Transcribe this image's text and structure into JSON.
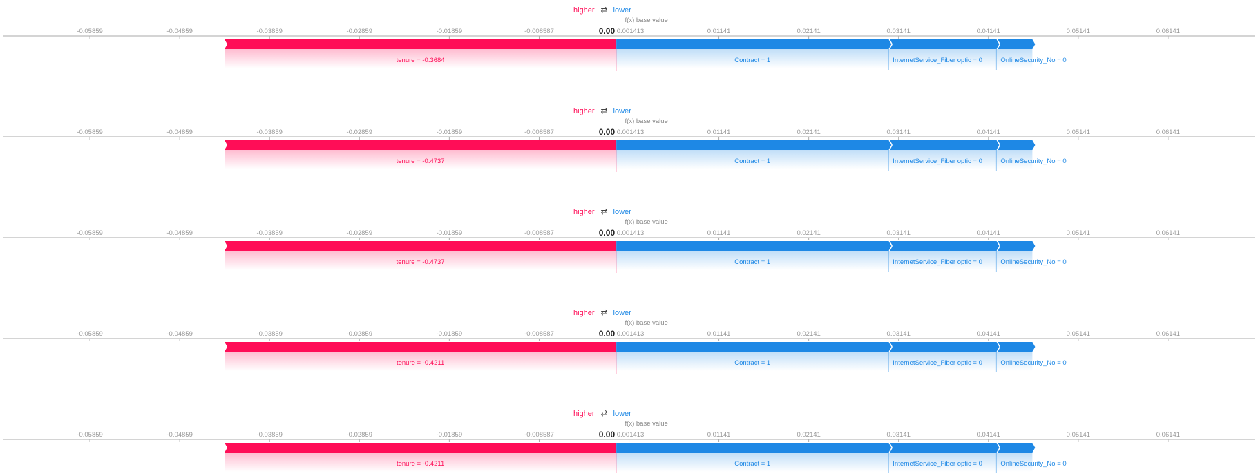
{
  "legend": {
    "higher": "higher",
    "lower": "lower",
    "arrow": "⇄"
  },
  "base_label": "f(x)  base value",
  "colors": {
    "positive": "#ff0d57",
    "negative": "#1e88e5",
    "axis": "#888888",
    "text": "#444444"
  },
  "chart_data": [
    {
      "type": "force",
      "fx": "0.00",
      "base_value": 0.001413,
      "xlim": [
        -0.06859,
        0.07141
      ],
      "ticks": [
        -0.05859,
        -0.04859,
        -0.03859,
        -0.02859,
        -0.01859,
        -0.008587,
        0.001413,
        0.01141,
        0.02141,
        0.03141,
        0.04141,
        0.05141,
        0.06141
      ],
      "tick_labels": [
        "-0.05859",
        "-0.04859",
        "-0.03859",
        "-0.02859",
        "-0.01859",
        "-0.008587",
        "0.001413",
        "0.01141",
        "0.02141",
        "0.03141",
        "0.04141",
        "0.05141",
        "0.06141"
      ],
      "positive_features": [
        {
          "label": "tenure = -0.3684",
          "start": -0.0436,
          "end": 0.0
        }
      ],
      "negative_features": [
        {
          "label": "Contract = 1",
          "start": 0.0,
          "end": 0.0303
        },
        {
          "label": "InternetService_Fiber optic = 0",
          "start": 0.0303,
          "end": 0.0423
        },
        {
          "label": "OnlineSecurity_No = 0",
          "start": 0.0423,
          "end": 0.0463
        }
      ]
    },
    {
      "type": "force",
      "fx": "0.00",
      "base_value": 0.001413,
      "xlim": [
        -0.06859,
        0.07141
      ],
      "ticks": [
        -0.05859,
        -0.04859,
        -0.03859,
        -0.02859,
        -0.01859,
        -0.008587,
        0.001413,
        0.01141,
        0.02141,
        0.03141,
        0.04141,
        0.05141,
        0.06141
      ],
      "tick_labels": [
        "-0.05859",
        "-0.04859",
        "-0.03859",
        "-0.02859",
        "-0.01859",
        "-0.008587",
        "0.001413",
        "0.01141",
        "0.02141",
        "0.03141",
        "0.04141",
        "0.05141",
        "0.06141"
      ],
      "positive_features": [
        {
          "label": "tenure = -0.4737",
          "start": -0.0436,
          "end": 0.0
        }
      ],
      "negative_features": [
        {
          "label": "Contract = 1",
          "start": 0.0,
          "end": 0.0303
        },
        {
          "label": "InternetService_Fiber optic = 0",
          "start": 0.0303,
          "end": 0.0423
        },
        {
          "label": "OnlineSecurity_No = 0",
          "start": 0.0423,
          "end": 0.0463
        }
      ]
    },
    {
      "type": "force",
      "fx": "0.00",
      "base_value": 0.001413,
      "xlim": [
        -0.06859,
        0.07141
      ],
      "ticks": [
        -0.05859,
        -0.04859,
        -0.03859,
        -0.02859,
        -0.01859,
        -0.008587,
        0.001413,
        0.01141,
        0.02141,
        0.03141,
        0.04141,
        0.05141,
        0.06141
      ],
      "tick_labels": [
        "-0.05859",
        "-0.04859",
        "-0.03859",
        "-0.02859",
        "-0.01859",
        "-0.008587",
        "0.001413",
        "0.01141",
        "0.02141",
        "0.03141",
        "0.04141",
        "0.05141",
        "0.06141"
      ],
      "positive_features": [
        {
          "label": "tenure = -0.4737",
          "start": -0.0436,
          "end": 0.0
        }
      ],
      "negative_features": [
        {
          "label": "Contract = 1",
          "start": 0.0,
          "end": 0.0303
        },
        {
          "label": "InternetService_Fiber optic = 0",
          "start": 0.0303,
          "end": 0.0423
        },
        {
          "label": "OnlineSecurity_No = 0",
          "start": 0.0423,
          "end": 0.0463
        }
      ]
    },
    {
      "type": "force",
      "fx": "0.00",
      "base_value": 0.001413,
      "xlim": [
        -0.06859,
        0.07141
      ],
      "ticks": [
        -0.05859,
        -0.04859,
        -0.03859,
        -0.02859,
        -0.01859,
        -0.008587,
        0.001413,
        0.01141,
        0.02141,
        0.03141,
        0.04141,
        0.05141,
        0.06141
      ],
      "tick_labels": [
        "-0.05859",
        "-0.04859",
        "-0.03859",
        "-0.02859",
        "-0.01859",
        "-0.008587",
        "0.001413",
        "0.01141",
        "0.02141",
        "0.03141",
        "0.04141",
        "0.05141",
        "0.06141"
      ],
      "positive_features": [
        {
          "label": "tenure = -0.4211",
          "start": -0.0436,
          "end": 0.0
        }
      ],
      "negative_features": [
        {
          "label": "Contract = 1",
          "start": 0.0,
          "end": 0.0303
        },
        {
          "label": "InternetService_Fiber optic = 0",
          "start": 0.0303,
          "end": 0.0423
        },
        {
          "label": "OnlineSecurity_No = 0",
          "start": 0.0423,
          "end": 0.0463
        }
      ]
    },
    {
      "type": "force",
      "fx": "0.00",
      "base_value": 0.001413,
      "xlim": [
        -0.06859,
        0.07141
      ],
      "ticks": [
        -0.05859,
        -0.04859,
        -0.03859,
        -0.02859,
        -0.01859,
        -0.008587,
        0.001413,
        0.01141,
        0.02141,
        0.03141,
        0.04141,
        0.05141,
        0.06141
      ],
      "tick_labels": [
        "-0.05859",
        "-0.04859",
        "-0.03859",
        "-0.02859",
        "-0.01859",
        "-0.008587",
        "0.001413",
        "0.01141",
        "0.02141",
        "0.03141",
        "0.04141",
        "0.05141",
        "0.06141"
      ],
      "positive_features": [
        {
          "label": "tenure = -0.4211",
          "start": -0.0436,
          "end": 0.0
        }
      ],
      "negative_features": [
        {
          "label": "Contract = 1",
          "start": 0.0,
          "end": 0.0303
        },
        {
          "label": "InternetService_Fiber optic = 0",
          "start": 0.0303,
          "end": 0.0423
        },
        {
          "label": "OnlineSecurity_No = 0",
          "start": 0.0423,
          "end": 0.0463
        }
      ]
    }
  ]
}
